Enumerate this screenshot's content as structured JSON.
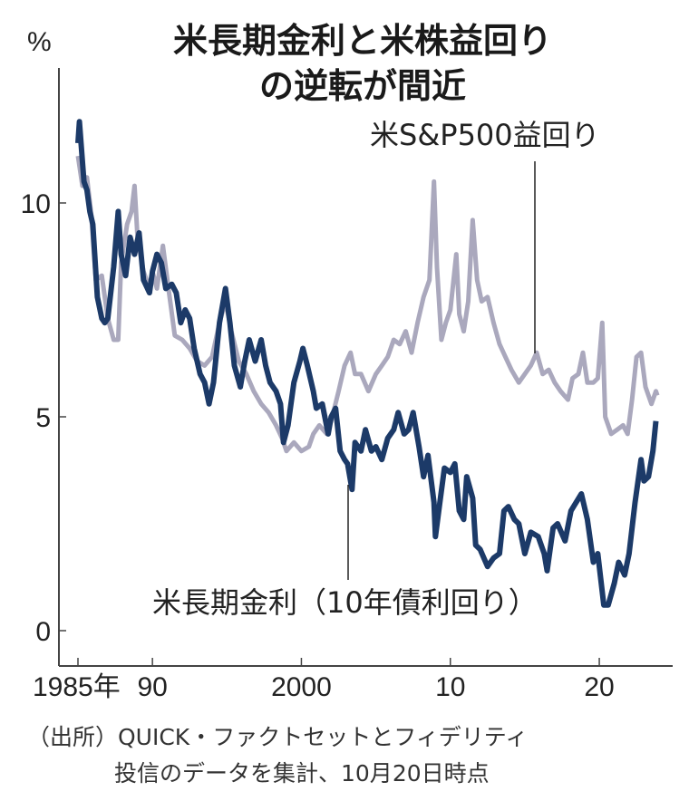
{
  "chart_data": {
    "type": "line",
    "title_lines": [
      "米長期金利と米株益回り",
      "の逆転が間近"
    ],
    "ylabel": "%",
    "xlabel": "",
    "ylim": [
      0,
      12.5
    ],
    "xlim": [
      1984.0,
      2024.5
    ],
    "y_ticks": [
      {
        "value": 0,
        "label": "0"
      },
      {
        "value": 5,
        "label": "5"
      },
      {
        "value": 10,
        "label": "10"
      }
    ],
    "x_ticks": [
      {
        "value": 1985,
        "label": "1985年"
      },
      {
        "value": 1990,
        "label": "90"
      },
      {
        "value": 2000,
        "label": "2000"
      },
      {
        "value": 2010,
        "label": "10"
      },
      {
        "value": 2020,
        "label": "20"
      }
    ],
    "grid": false,
    "series": [
      {
        "name": "米S&P500益回り",
        "color": "#aaa8bd",
        "label_anchor": [
          2015.5,
          6.5
        ],
        "points": [
          [
            1985.0,
            11.1
          ],
          [
            1985.3,
            10.4
          ],
          [
            1985.6,
            10.6
          ],
          [
            1985.9,
            9.7
          ],
          [
            1986.2,
            8.2
          ],
          [
            1986.6,
            8.3
          ],
          [
            1987.0,
            7.3
          ],
          [
            1987.4,
            6.8
          ],
          [
            1987.7,
            6.8
          ],
          [
            1987.9,
            8.6
          ],
          [
            1988.3,
            9.5
          ],
          [
            1988.6,
            9.8
          ],
          [
            1988.8,
            10.4
          ],
          [
            1989.0,
            9.2
          ],
          [
            1989.4,
            8.4
          ],
          [
            1989.8,
            8.0
          ],
          [
            1990.0,
            8.4
          ],
          [
            1990.3,
            8.0
          ],
          [
            1990.7,
            9.0
          ],
          [
            1991.0,
            8.2
          ],
          [
            1991.5,
            6.9
          ],
          [
            1992.0,
            6.8
          ],
          [
            1992.5,
            6.6
          ],
          [
            1993.0,
            6.3
          ],
          [
            1993.5,
            6.2
          ],
          [
            1994.0,
            6.4
          ],
          [
            1994.5,
            7.2
          ],
          [
            1994.9,
            7.7
          ],
          [
            1995.3,
            7.0
          ],
          [
            1995.8,
            6.3
          ],
          [
            1996.3,
            6.0
          ],
          [
            1996.8,
            5.6
          ],
          [
            1997.3,
            5.3
          ],
          [
            1997.8,
            5.1
          ],
          [
            1998.3,
            4.8
          ],
          [
            1998.7,
            4.5
          ],
          [
            1999.0,
            4.2
          ],
          [
            1999.5,
            4.4
          ],
          [
            2000.0,
            4.2
          ],
          [
            2000.5,
            4.3
          ],
          [
            2000.8,
            4.6
          ],
          [
            2001.2,
            4.8
          ],
          [
            2001.7,
            4.6
          ],
          [
            2002.0,
            4.9
          ],
          [
            2002.5,
            5.6
          ],
          [
            2002.9,
            6.2
          ],
          [
            2003.3,
            6.5
          ],
          [
            2003.6,
            6.0
          ],
          [
            2004.0,
            6.0
          ],
          [
            2004.5,
            5.6
          ],
          [
            2005.0,
            6.0
          ],
          [
            2005.4,
            6.2
          ],
          [
            2005.8,
            6.4
          ],
          [
            2006.2,
            6.8
          ],
          [
            2006.6,
            6.7
          ],
          [
            2007.0,
            7.0
          ],
          [
            2007.4,
            6.5
          ],
          [
            2007.8,
            7.2
          ],
          [
            2008.2,
            7.8
          ],
          [
            2008.6,
            8.2
          ],
          [
            2008.9,
            10.5
          ],
          [
            2009.1,
            8.5
          ],
          [
            2009.4,
            6.8
          ],
          [
            2009.7,
            7.2
          ],
          [
            2010.0,
            7.5
          ],
          [
            2010.4,
            8.8
          ],
          [
            2010.6,
            7.4
          ],
          [
            2010.9,
            7.0
          ],
          [
            2011.2,
            7.7
          ],
          [
            2011.5,
            9.6
          ],
          [
            2011.8,
            8.2
          ],
          [
            2012.1,
            7.7
          ],
          [
            2012.5,
            7.8
          ],
          [
            2012.9,
            7.2
          ],
          [
            2013.3,
            6.7
          ],
          [
            2013.7,
            6.4
          ],
          [
            2014.1,
            6.1
          ],
          [
            2014.6,
            5.8
          ],
          [
            2015.0,
            6.0
          ],
          [
            2015.4,
            6.2
          ],
          [
            2015.8,
            6.5
          ],
          [
            2016.2,
            6.0
          ],
          [
            2016.6,
            6.1
          ],
          [
            2017.0,
            5.8
          ],
          [
            2017.4,
            5.6
          ],
          [
            2017.9,
            5.4
          ],
          [
            2018.2,
            5.9
          ],
          [
            2018.6,
            6.0
          ],
          [
            2018.9,
            6.5
          ],
          [
            2019.2,
            5.8
          ],
          [
            2019.6,
            5.8
          ],
          [
            2019.9,
            5.9
          ],
          [
            2020.2,
            7.2
          ],
          [
            2020.4,
            5.0
          ],
          [
            2020.8,
            4.6
          ],
          [
            2021.2,
            4.7
          ],
          [
            2021.6,
            4.8
          ],
          [
            2021.9,
            4.6
          ],
          [
            2022.2,
            5.4
          ],
          [
            2022.5,
            6.4
          ],
          [
            2022.8,
            6.5
          ],
          [
            2023.1,
            5.7
          ],
          [
            2023.5,
            5.3
          ],
          [
            2023.8,
            5.6
          ],
          [
            2023.9,
            5.5
          ]
        ]
      },
      {
        "name": "米長期金利（10年債利回り）",
        "color": "#1c3a68",
        "label_anchor": [
          2003.4,
          3.3
        ],
        "points": [
          [
            1985.0,
            11.4
          ],
          [
            1985.1,
            11.9
          ],
          [
            1985.4,
            10.5
          ],
          [
            1985.6,
            10.3
          ],
          [
            1985.8,
            9.8
          ],
          [
            1986.0,
            9.5
          ],
          [
            1986.3,
            7.8
          ],
          [
            1986.6,
            7.3
          ],
          [
            1986.8,
            7.2
          ],
          [
            1987.0,
            7.3
          ],
          [
            1987.4,
            8.5
          ],
          [
            1987.7,
            9.8
          ],
          [
            1987.9,
            8.8
          ],
          [
            1988.2,
            8.3
          ],
          [
            1988.5,
            9.2
          ],
          [
            1988.8,
            8.8
          ],
          [
            1989.1,
            9.3
          ],
          [
            1989.4,
            8.2
          ],
          [
            1989.8,
            7.9
          ],
          [
            1990.0,
            8.4
          ],
          [
            1990.3,
            8.8
          ],
          [
            1990.6,
            8.6
          ],
          [
            1990.9,
            8.0
          ],
          [
            1991.3,
            8.1
          ],
          [
            1991.6,
            7.9
          ],
          [
            1991.9,
            7.2
          ],
          [
            1992.2,
            7.5
          ],
          [
            1992.5,
            7.3
          ],
          [
            1992.8,
            6.6
          ],
          [
            1993.2,
            6.0
          ],
          [
            1993.5,
            5.8
          ],
          [
            1993.8,
            5.3
          ],
          [
            1994.1,
            5.8
          ],
          [
            1994.5,
            7.2
          ],
          [
            1994.9,
            8.0
          ],
          [
            1995.2,
            7.2
          ],
          [
            1995.5,
            6.2
          ],
          [
            1995.9,
            5.7
          ],
          [
            1996.2,
            6.3
          ],
          [
            1996.5,
            6.8
          ],
          [
            1996.9,
            6.3
          ],
          [
            1997.3,
            6.8
          ],
          [
            1997.6,
            6.2
          ],
          [
            1997.9,
            5.8
          ],
          [
            1998.3,
            5.6
          ],
          [
            1998.6,
            5.3
          ],
          [
            1998.8,
            4.4
          ],
          [
            1999.1,
            4.8
          ],
          [
            1999.5,
            5.8
          ],
          [
            1999.9,
            6.3
          ],
          [
            2000.1,
            6.6
          ],
          [
            2000.4,
            6.2
          ],
          [
            2000.8,
            5.6
          ],
          [
            2001.0,
            5.2
          ],
          [
            2001.4,
            5.3
          ],
          [
            2001.8,
            4.6
          ],
          [
            2002.0,
            5.0
          ],
          [
            2002.3,
            5.2
          ],
          [
            2002.6,
            4.2
          ],
          [
            2002.9,
            4.0
          ],
          [
            2003.1,
            3.9
          ],
          [
            2003.4,
            3.3
          ],
          [
            2003.6,
            4.4
          ],
          [
            2004.0,
            4.2
          ],
          [
            2004.3,
            4.7
          ],
          [
            2004.7,
            4.2
          ],
          [
            2005.0,
            4.3
          ],
          [
            2005.4,
            4.0
          ],
          [
            2005.8,
            4.5
          ],
          [
            2006.2,
            4.7
          ],
          [
            2006.5,
            5.1
          ],
          [
            2006.9,
            4.6
          ],
          [
            2007.2,
            4.7
          ],
          [
            2007.5,
            5.1
          ],
          [
            2007.9,
            4.3
          ],
          [
            2008.2,
            3.6
          ],
          [
            2008.5,
            4.1
          ],
          [
            2008.9,
            3.0
          ],
          [
            2009.0,
            2.2
          ],
          [
            2009.3,
            3.0
          ],
          [
            2009.6,
            3.8
          ],
          [
            2010.0,
            3.7
          ],
          [
            2010.3,
            3.9
          ],
          [
            2010.6,
            2.8
          ],
          [
            2010.9,
            2.6
          ],
          [
            2011.1,
            3.6
          ],
          [
            2011.5,
            3.1
          ],
          [
            2011.7,
            2.0
          ],
          [
            2012.0,
            1.9
          ],
          [
            2012.5,
            1.5
          ],
          [
            2012.9,
            1.7
          ],
          [
            2013.3,
            1.8
          ],
          [
            2013.6,
            2.8
          ],
          [
            2013.9,
            2.9
          ],
          [
            2014.3,
            2.6
          ],
          [
            2014.6,
            2.5
          ],
          [
            2015.0,
            1.8
          ],
          [
            2015.4,
            2.3
          ],
          [
            2015.9,
            2.2
          ],
          [
            2016.3,
            1.8
          ],
          [
            2016.5,
            1.4
          ],
          [
            2016.9,
            2.4
          ],
          [
            2017.2,
            2.5
          ],
          [
            2017.7,
            2.1
          ],
          [
            2018.1,
            2.8
          ],
          [
            2018.8,
            3.2
          ],
          [
            2019.2,
            2.6
          ],
          [
            2019.6,
            1.6
          ],
          [
            2019.9,
            1.8
          ],
          [
            2020.1,
            1.2
          ],
          [
            2020.3,
            0.6
          ],
          [
            2020.6,
            0.6
          ],
          [
            2021.0,
            1.1
          ],
          [
            2021.3,
            1.6
          ],
          [
            2021.7,
            1.3
          ],
          [
            2022.0,
            1.8
          ],
          [
            2022.4,
            3.0
          ],
          [
            2022.8,
            4.0
          ],
          [
            2023.0,
            3.5
          ],
          [
            2023.3,
            3.6
          ],
          [
            2023.6,
            4.2
          ],
          [
            2023.8,
            4.9
          ]
        ]
      }
    ],
    "source_lines": [
      "（出所）QUICK・ファクトセットとフィデリティ",
      "投信のデータを集計、10月20日時点"
    ]
  }
}
